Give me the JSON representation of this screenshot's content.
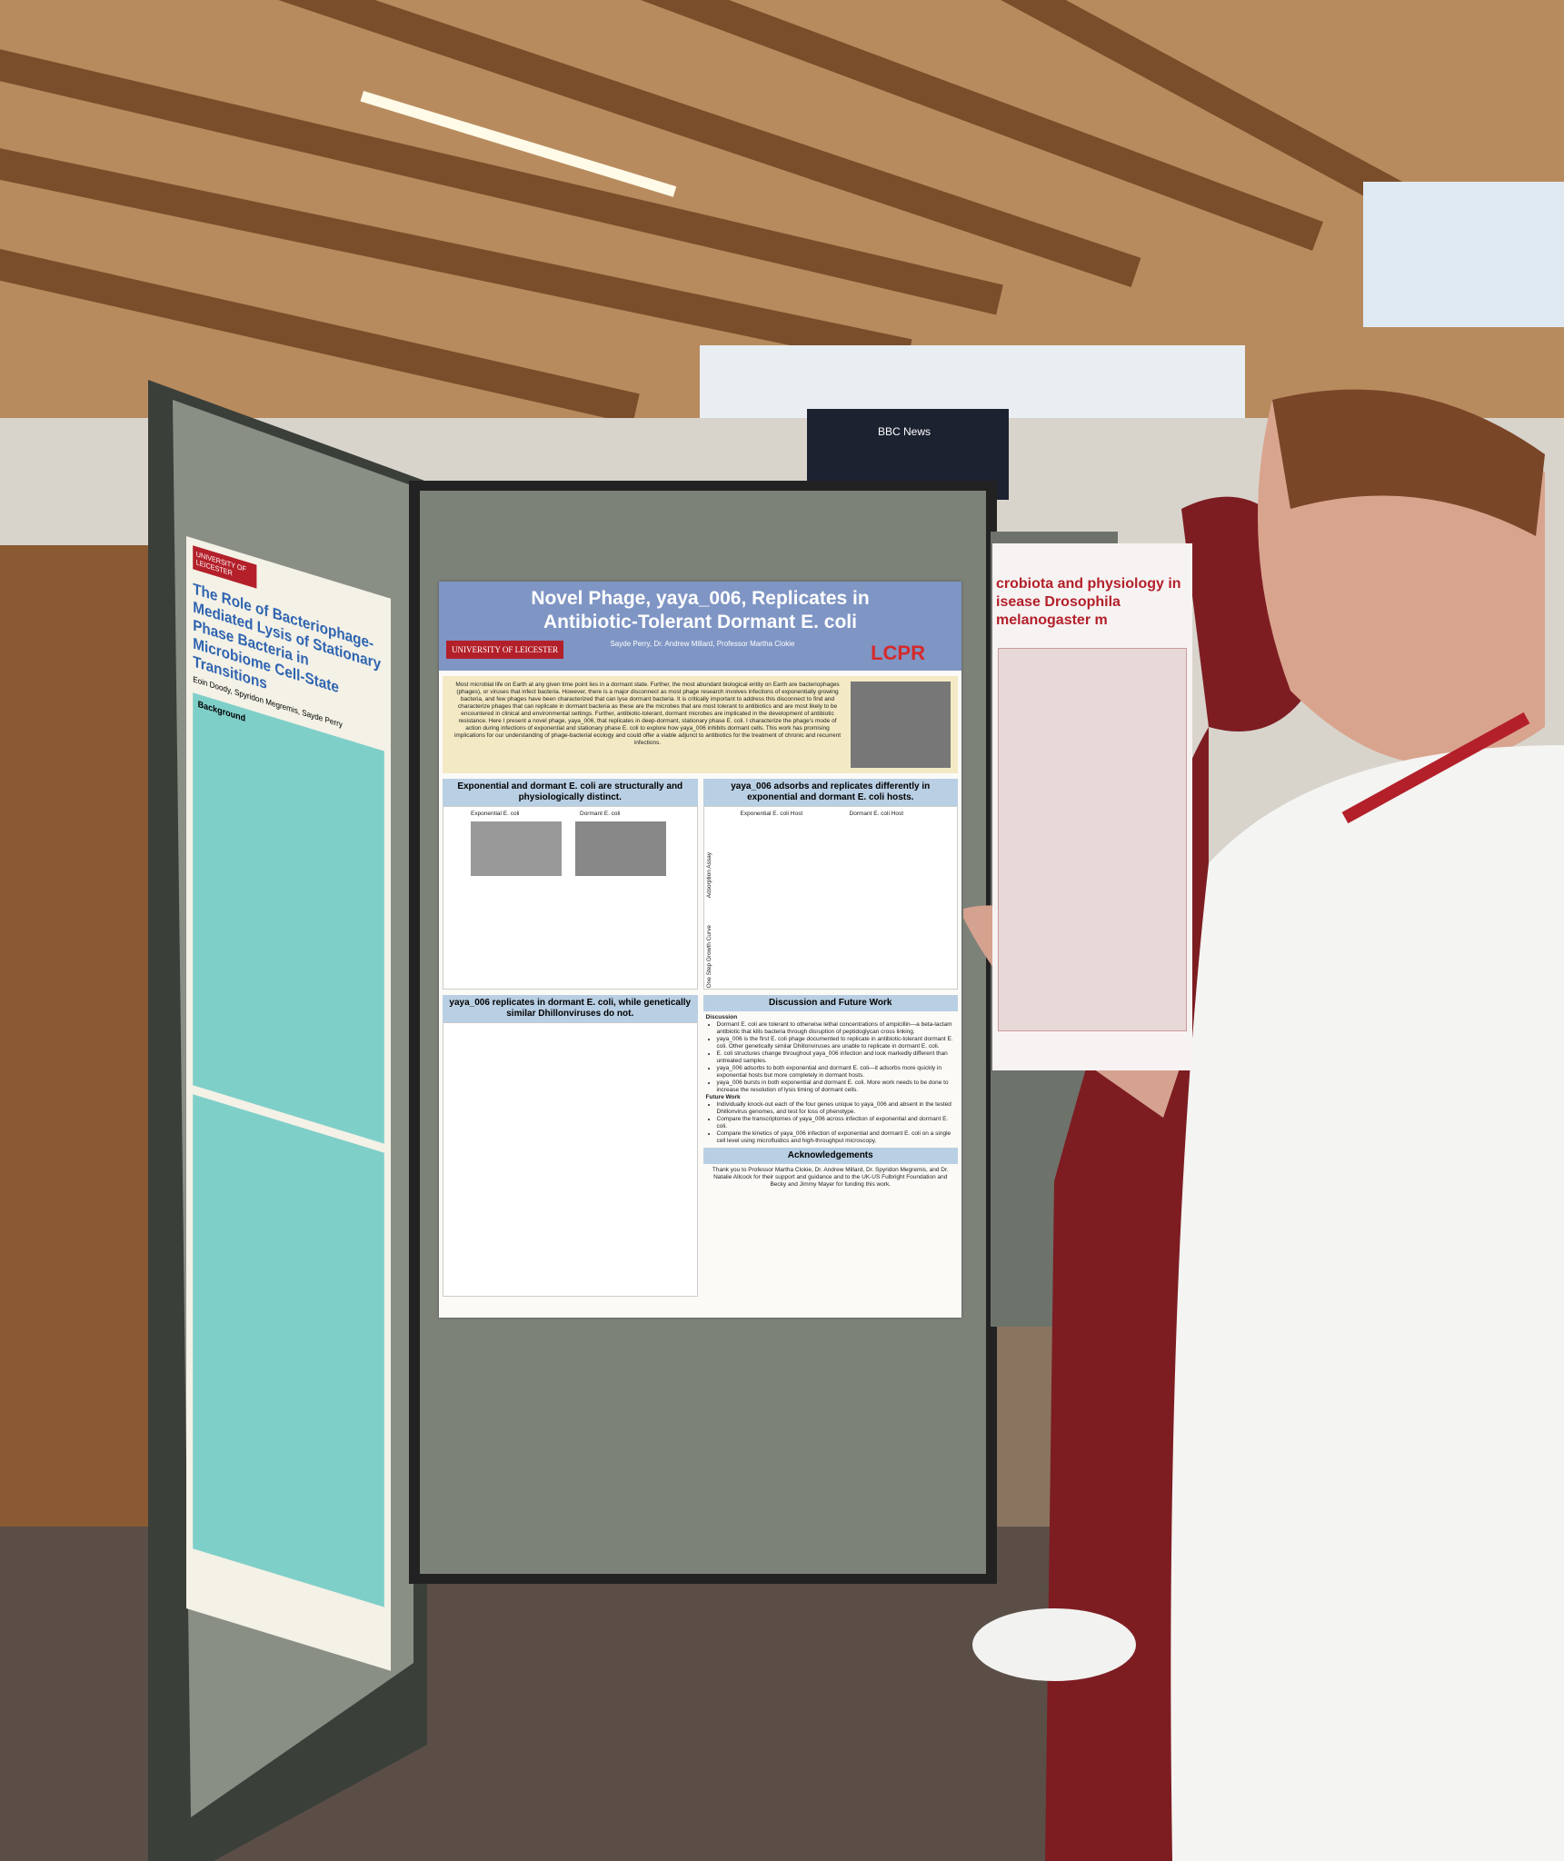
{
  "tv": {
    "label": "BBC News"
  },
  "center_poster": {
    "title_lines": [
      "Novel Phage, yaya_006, Replicates in",
      "Antibiotic-Tolerant Dormant E. coli"
    ],
    "logo": "UNIVERSITY OF LEICESTER",
    "lab_logo": "LCPR",
    "authors": "Sayde Perry, Dr. Andrew Millard, Professor Martha Clokie",
    "abstract": "Most microbial life on Earth at any given time point lies in a dormant state. Further, the most abundant biological entity on Earth are bacteriophages (phages), or viruses that infect bacteria. However, there is a major disconnect as most phage research involves infections of exponentially growing bacteria, and few phages have been characterized that can lyse dormant bacteria. It is critically important to address this disconnect to find and characterize phages that can replicate in dormant bacteria as these are the microbes that are most tolerant to antibiotics and are most likely to be encountered in clinical and environmental settings. Further, antibiotic-tolerant, dormant microbes are implicated in the development of antibiotic resistance. Here I present a novel phage, yaya_006, that replicates in deep-dormant, stationary phase E. coli. I characterize the phage's mode of action during infections of exponential and stationary phase E. coli to explore how yaya_006 inhibits dormant cells. This work has promising implications for our understanding of phage-bacterial ecology and could offer a viable adjunct to antibiotics for the treatment of chronic and recurrent infections.",
    "section_1": {
      "heading": "Exponential and dormant E. coli are structurally and physiologically distinct.",
      "labels": [
        "Exponential E. coli",
        "Dormant E. coli"
      ]
    },
    "section_2": {
      "heading": "yaya_006 adsorbs and replicates differently in exponential and dormant E. coli hosts.",
      "labels": [
        "Exponential E. coli Host",
        "Dormant E. coli Host",
        "Adsorption Assay",
        "One Step Growth Curve"
      ]
    },
    "section_3": {
      "heading": "yaya_006 replicates in dormant E. coli, while genetically similar Dhillonviruses do not."
    },
    "discussion": {
      "heading": "Discussion and Future Work",
      "sub_1": "Discussion",
      "bullets": [
        "Dormant E. coli are tolerant to otherwise lethal concentrations of ampicillin—a beta-lactam antibiotic that kills bacteria through disruption of peptidoglycan cross linking.",
        "yaya_006 is the first E. coli phage documented to replicate in antibiotic-tolerant dormant E. coli. Other genetically similar Dhillonviruses are unable to replicate in dormant E. coli.",
        "E. coli structures change throughout yaya_006 infection and look markedly different than untreated samples.",
        "yaya_006 adsorbs to both exponential and dormant E. coli—it adsorbs more quickly in exponential hosts but more completely in dormant hosts.",
        "yaya_006 bursts in both exponential and dormant E. coli. More work needs to be done to increase the resolution of lysis timing of dormant cells."
      ],
      "sub_2": "Future Work",
      "future": [
        "Individually knock-out each of the four genes unique to yaya_006 and absent in the tested Dhillonvirus genomes, and test for loss of phenotype.",
        "Compare the transcriptomes of yaya_006 across infection of exponential and dormant E. coli.",
        "Compare the kinetics of yaya_006 infection of exponential and dormant E. coli on a single cell level using microfluidics and high-throughput microscopy."
      ]
    },
    "acknowledgements": {
      "heading": "Acknowledgements",
      "text": "Thank you to Professor Martha Clokie, Dr. Andrew Millard, Dr. Spyridon Megremis, and Dr. Natalie Allcock for their support and guidance and to the UK-US Fulbright Foundation and Becky and Jimmy Mayer for funding this work."
    }
  },
  "left_poster": {
    "logo": "UNIVERSITY OF LEICESTER",
    "title": "The Role of Bacteriophage-Mediated Lysis of Stationary Phase Bacteria in Microbiome Cell-State Transitions",
    "authors": "Eoin Doody, Spyridon Megremis, Sayde Perry",
    "background": "Background"
  },
  "right_poster": {
    "title_lines": [
      "crobiota and physiology in",
      "isease Drosophila melanogaster m"
    ]
  }
}
